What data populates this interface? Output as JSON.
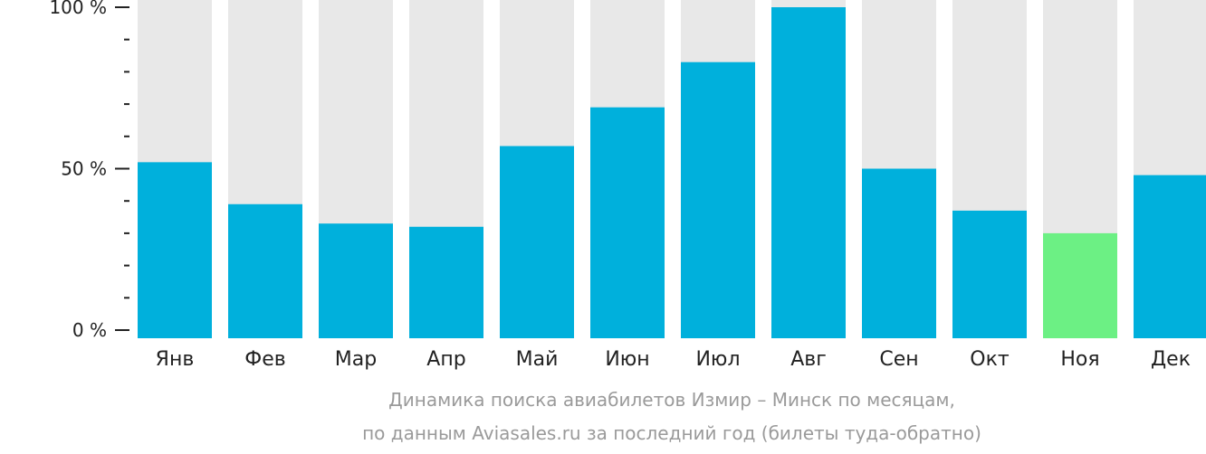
{
  "chart_data": {
    "type": "bar",
    "categories": [
      "Янв",
      "Фев",
      "Мар",
      "Апр",
      "Май",
      "Июн",
      "Июл",
      "Авг",
      "Сен",
      "Окт",
      "Ноя",
      "Дек"
    ],
    "values": [
      52,
      39,
      33,
      32,
      57,
      69,
      83,
      100,
      50,
      37,
      30,
      48
    ],
    "ylim": [
      0,
      100
    ],
    "yticks": [
      {
        "value": 0,
        "label": "0 %"
      },
      {
        "value": 50,
        "label": "50 %"
      },
      {
        "value": 100,
        "label": "100 %"
      }
    ],
    "minor_yticks": [
      10,
      20,
      30,
      40,
      60,
      70,
      80,
      90
    ],
    "highlight_index": 10,
    "colors": {
      "bar": "#00b0dc",
      "highlight": "#6cf084",
      "track": "#e8e8e8",
      "axis": "#222222",
      "caption": "#9a9a9a"
    },
    "caption_line1": "Динамика поиска авиабилетов Измир – Минск по месяцам,",
    "caption_line2": "по данным Aviasales.ru за последний год (билеты туда-обратно)"
  }
}
